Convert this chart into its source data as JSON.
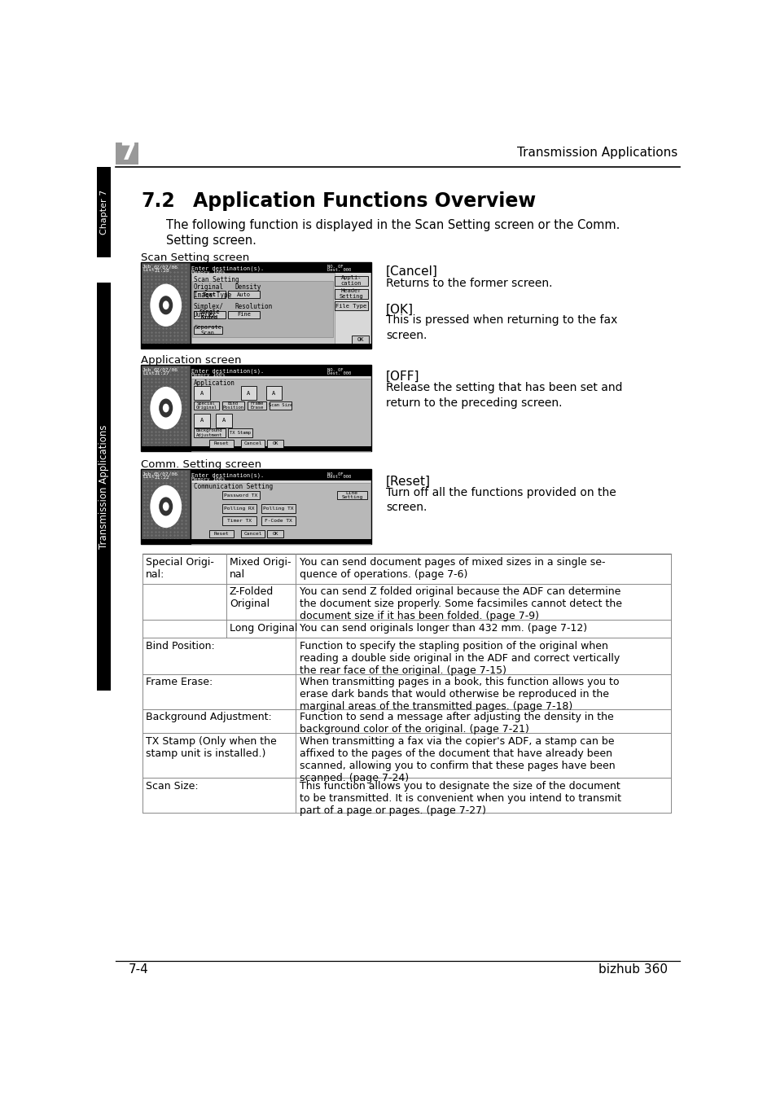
{
  "page_bg": "#ffffff",
  "chapter_number": "7",
  "header_right_text": "Transmission Applications",
  "sidebar_text": "Transmission Applications",
  "chapter_label": "Chapter 7",
  "section_number": "7.2",
  "section_title": "Application Functions Overview",
  "intro_text": "The following function is displayed in the Scan Setting screen or the Comm.\nSetting screen.",
  "screen_labels": [
    "Scan Setting screen",
    "Application screen",
    "Comm. Setting screen"
  ],
  "cancel_label": "[Cancel]",
  "cancel_desc": "Returns to the former screen.",
  "ok_label": "[OK]",
  "ok_desc": "This is pressed when returning to the fax\nscreen.",
  "off_label": "[OFF]",
  "off_desc": "Release the setting that has been set and\nreturn to the preceding screen.",
  "reset_label": "[Reset]",
  "reset_desc": "Turn off all the functions provided on the\nscreen.",
  "table_data": [
    {
      "col1": "Special Origi-\nnal:",
      "col2": "Mixed Origi-\nnal",
      "col3": "You can send document pages of mixed sizes in a single se-\nquence of operations. (page 7-6)"
    },
    {
      "col1": "",
      "col2": "Z-Folded\nOriginal",
      "col3": "You can send Z folded original because the ADF can determine\nthe document size properly. Some facsimiles cannot detect the\ndocument size if it has been folded. (page 7-9)"
    },
    {
      "col1": "",
      "col2": "Long Original",
      "col3": "You can send originals longer than 432 mm. (page 7-12)"
    },
    {
      "col1": "Bind Position:",
      "col2": "",
      "col3": "Function to specify the stapling position of the original when\nreading a double side original in the ADF and correct vertically\nthe rear face of the original. (page 7-15)"
    },
    {
      "col1": "Frame Erase:",
      "col2": "",
      "col3": "When transmitting pages in a book, this function allows you to\nerase dark bands that would otherwise be reproduced in the\nmarginal areas of the transmitted pages. (page 7-18)"
    },
    {
      "col1": "Background Adjustment:",
      "col2": "",
      "col3": "Function to send a message after adjusting the density in the\nbackground color of the original. (page 7-21)"
    },
    {
      "col1": "TX Stamp (Only when the\nstamp unit is installed.)",
      "col2": "",
      "col3": "When transmitting a fax via the copier's ADF, a stamp can be\naffixed to the pages of the document that have already been\nscanned, allowing you to confirm that these pages have been\nscanned. (page 7-24)"
    },
    {
      "col1": "Scan Size:",
      "col2": "",
      "col3": "This function allows you to designate the size of the document\nto be transmitted. It is convenient when you intend to transmit\npart of a page or pages. (page 7-27)"
    }
  ],
  "footer_left": "7-4",
  "footer_right": "bizhub 360"
}
